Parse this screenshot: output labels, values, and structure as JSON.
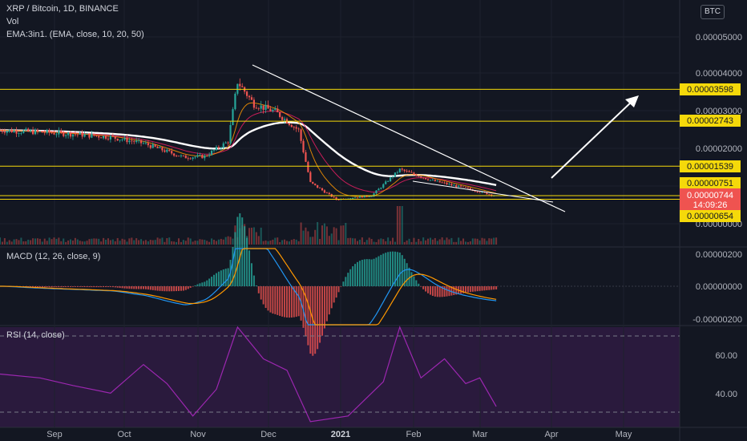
{
  "header": {
    "title": "XRP / Bitcoin, 1D, BINANCE",
    "vol_label": "Vol",
    "ema_label": "EMA:3in1. (EMA, close, 10, 20, 50)",
    "currency_badge": "BTC"
  },
  "price_pane": {
    "axis_ticks": [
      "0.00005000",
      "0.00004000",
      "0.00003000",
      "0.00002000",
      "0.00000000"
    ],
    "horizontal_levels": [
      "0.00003598",
      "0.00002743",
      "0.00001539",
      "0.00000751",
      "0.00000654"
    ],
    "last_price": "0.00000744",
    "countdown": "14:09:26",
    "level_color": "#f5d90a",
    "last_price_color": "#ef5350"
  },
  "macd_pane": {
    "label": "MACD (12, 26, close, 9)",
    "axis_ticks": [
      "0.00000200",
      "0.00000000",
      "-0.00000200"
    ]
  },
  "rsi_pane": {
    "label": "RSI (14, close)",
    "axis_ticks": [
      "60.00",
      "40.00"
    ],
    "line_color": "#9c27b0"
  },
  "time_axis": {
    "labels": [
      "Sep",
      "Oct",
      "Nov",
      "Dec",
      "2021",
      "Feb",
      "Mar",
      "Apr",
      "May"
    ]
  },
  "colors": {
    "background": "#131722",
    "up": "#26a69a",
    "down": "#ef5350",
    "ema_fast": "#ff9800",
    "ema_mid": "#e91e63",
    "ema_slow": "#ffffff"
  },
  "chart_data": {
    "type": "candlestick",
    "symbol": "XRP / Bitcoin, 1D, BINANCE",
    "y_unit": "BTC",
    "ylim": [
      0.0,
      5.4e-05
    ],
    "x_range": [
      "2020-08-15",
      "2021-05-31"
    ],
    "price_path": [
      {
        "date": "2020-08-15",
        "close": 2.5e-05
      },
      {
        "date": "2020-09-01",
        "close": 2.45e-05
      },
      {
        "date": "2020-09-15",
        "close": 2.4e-05
      },
      {
        "date": "2020-10-01",
        "close": 2.32e-05
      },
      {
        "date": "2020-10-15",
        "close": 2.15e-05
      },
      {
        "date": "2020-11-01",
        "close": 1.78e-05
      },
      {
        "date": "2020-11-10",
        "close": 1.8e-05
      },
      {
        "date": "2020-11-20",
        "close": 2.2e-05
      },
      {
        "date": "2020-11-24",
        "close": 3.8e-05
      },
      {
        "date": "2020-12-01",
        "close": 3.2e-05
      },
      {
        "date": "2020-12-10",
        "close": 3e-05
      },
      {
        "date": "2020-12-20",
        "close": 2.5e-05
      },
      {
        "date": "2020-12-25",
        "close": 1.1e-05
      },
      {
        "date": "2021-01-05",
        "close": 6.5e-06
      },
      {
        "date": "2021-01-20",
        "close": 7.5e-06
      },
      {
        "date": "2021-02-01",
        "close": 1.45e-05
      },
      {
        "date": "2021-02-15",
        "close": 1.15e-05
      },
      {
        "date": "2021-03-01",
        "close": 9.5e-06
      },
      {
        "date": "2021-03-14",
        "close": 7.4e-06
      }
    ],
    "horizontal_levels": [
      3.598e-05,
      2.743e-05,
      1.539e-05,
      7.51e-06,
      6.54e-06
    ],
    "last_price": 7.44e-06,
    "macd": {
      "label": "MACD (12, 26, close, 9)",
      "ylim": [
        -2.2e-06,
        2.2e-06
      ]
    },
    "rsi": {
      "label": "RSI (14, close)",
      "ylim": [
        25,
        75
      ],
      "bands": [
        70,
        30
      ],
      "values": [
        {
          "date": "2020-08-15",
          "value": 50
        },
        {
          "date": "2020-09-01",
          "value": 48
        },
        {
          "date": "2020-09-15",
          "value": 44
        },
        {
          "date": "2020-10-01",
          "value": 40
        },
        {
          "date": "2020-10-15",
          "value": 55
        },
        {
          "date": "2020-10-25",
          "value": 45
        },
        {
          "date": "2020-11-05",
          "value": 28
        },
        {
          "date": "2020-11-15",
          "value": 42
        },
        {
          "date": "2020-11-24",
          "value": 75
        },
        {
          "date": "2020-12-05",
          "value": 58
        },
        {
          "date": "2020-12-15",
          "value": 52
        },
        {
          "date": "2020-12-25",
          "value": 25
        },
        {
          "date": "2021-01-10",
          "value": 28
        },
        {
          "date": "2021-01-25",
          "value": 46
        },
        {
          "date": "2021-02-01",
          "value": 75
        },
        {
          "date": "2021-02-10",
          "value": 48
        },
        {
          "date": "2021-02-20",
          "value": 58
        },
        {
          "date": "2021-03-01",
          "value": 45
        },
        {
          "date": "2021-03-07",
          "value": 48
        },
        {
          "date": "2021-03-14",
          "value": 33
        }
      ]
    }
  }
}
